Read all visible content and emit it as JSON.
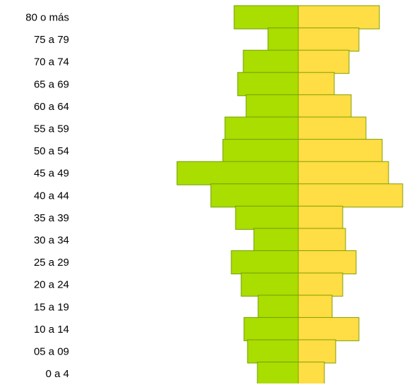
{
  "chart_data": {
    "type": "bar",
    "orientation": "horizontal",
    "categories": [
      "80 o más",
      "75 a 79",
      "70 a 74",
      "65 a 69",
      "60 a 64",
      "55 a 59",
      "50 a 54",
      "45 a 49",
      "40 a 44",
      "35 a 39",
      "30 a 34",
      "25 a 29",
      "20 a 24",
      "15 a 19",
      "10 a 14",
      "05 a 09",
      "0 a 4"
    ],
    "series": [
      {
        "color": "#aadd00",
        "values": [
          91,
          43,
          78,
          86,
          74,
          104,
          107,
          172,
          124,
          89,
          63,
          95,
          81,
          57,
          77,
          72,
          58
        ]
      },
      {
        "color": "#ffdd44",
        "values": [
          115,
          86,
          72,
          51,
          75,
          96,
          119,
          128,
          148,
          63,
          67,
          82,
          63,
          48,
          86,
          53,
          37
        ]
      }
    ],
    "grid": false,
    "legend": "none"
  }
}
